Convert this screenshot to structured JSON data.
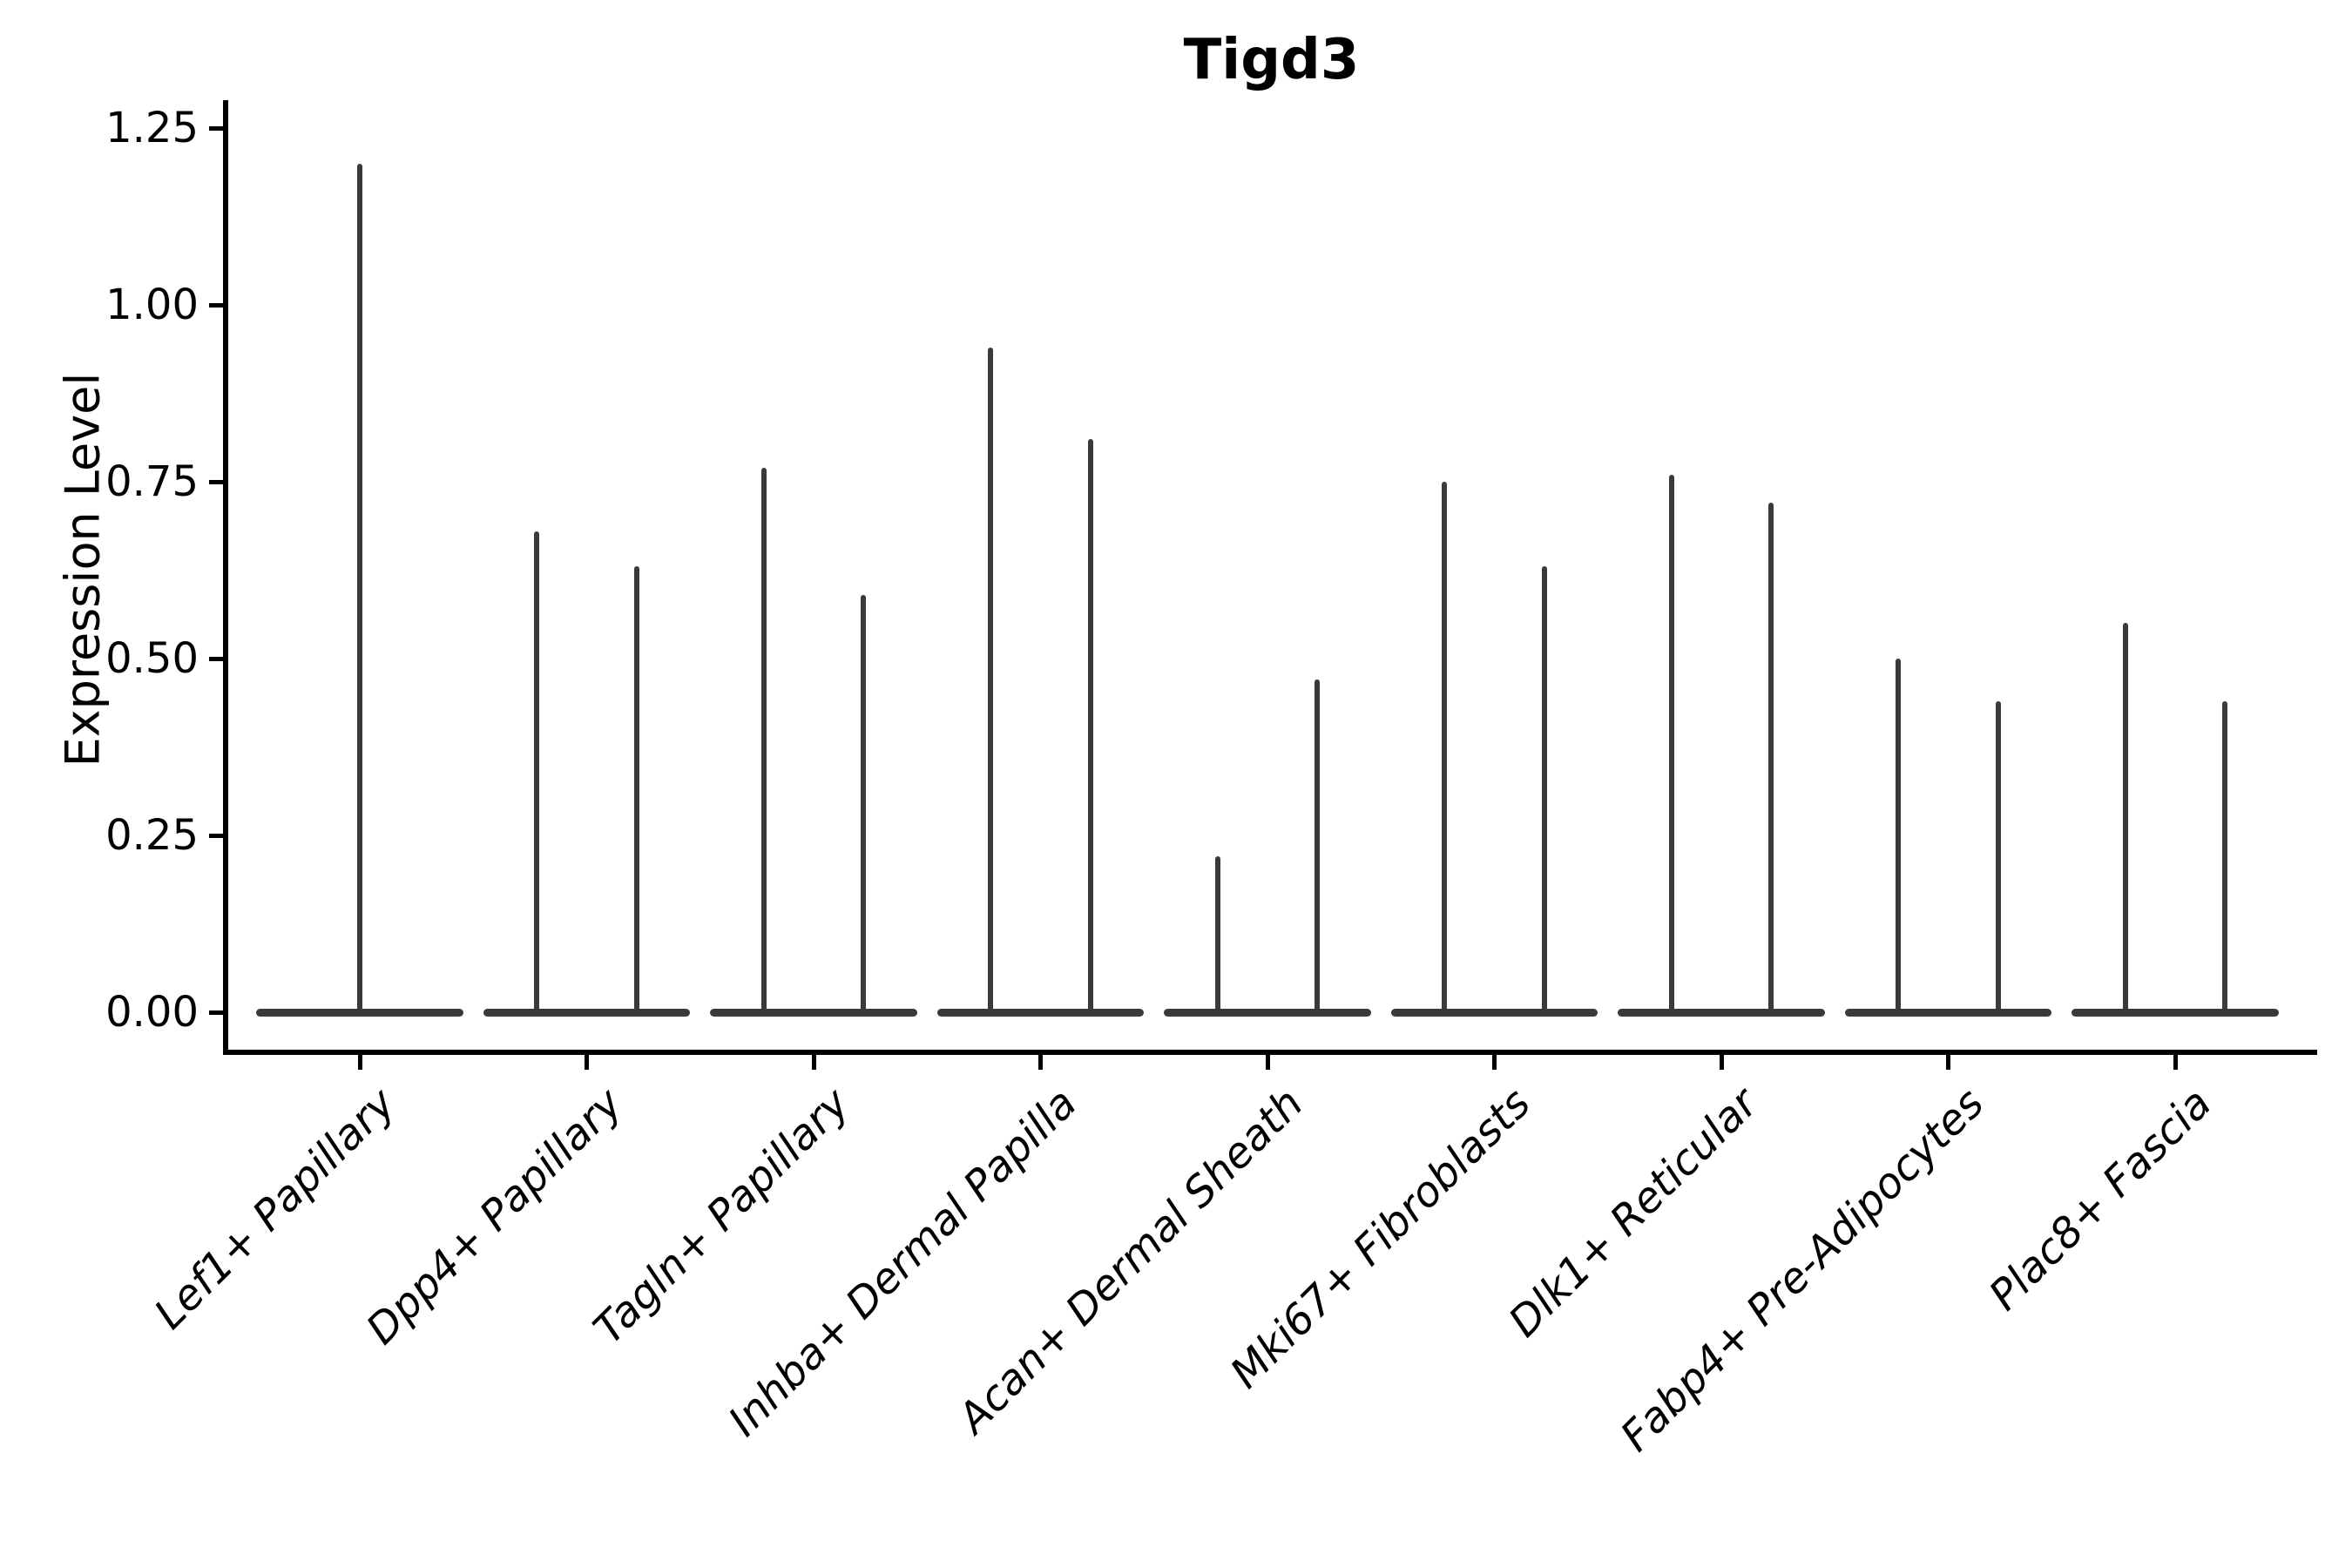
{
  "figure": {
    "title": "Tigd3",
    "ylabel": "Expression Level"
  },
  "chart_data": {
    "type": "violin",
    "title": "Tigd3",
    "xlabel": "",
    "ylabel": "Expression Level",
    "ylim": [
      0,
      1.25
    ],
    "grid": false,
    "legend": "none",
    "background": "#ffffff",
    "axis_color": "#000000",
    "violin_color": "#3a3a3a",
    "ytick_values": [
      0,
      0.25,
      0.5,
      0.75,
      1.0,
      1.25
    ],
    "ytick_labels": [
      "0.00",
      "0.25",
      "0.50",
      "0.75",
      "1.00",
      "1.25"
    ],
    "categories": [
      "Lef1+ Papillary",
      "Dpp4+ Papillary",
      "Tagln+ Papillary",
      "Inhba+ Dermal Papilla",
      "Acan+ Dermal Sheath",
      "Mki67+ Fibroblasts",
      "Dlk1+ Reticular",
      "Fabp4+ Pre-Adipocytes",
      "Plac8+ Fascia"
    ],
    "base_halfwidth_frac": 0.455,
    "violins": [
      {
        "category": "Lef1+ Papillary",
        "spikes": [
          {
            "offset": 0.0,
            "max": 1.2
          }
        ]
      },
      {
        "category": "Dpp4+ Papillary",
        "spikes": [
          {
            "offset": -0.22,
            "max": 0.68
          },
          {
            "offset": 0.22,
            "max": 0.63
          }
        ]
      },
      {
        "category": "Tagln+ Papillary",
        "spikes": [
          {
            "offset": -0.22,
            "max": 0.77
          },
          {
            "offset": 0.22,
            "max": 0.59
          }
        ]
      },
      {
        "category": "Inhba+ Dermal Papilla",
        "spikes": [
          {
            "offset": -0.22,
            "max": 0.94
          },
          {
            "offset": 0.22,
            "max": 0.81
          }
        ]
      },
      {
        "category": "Acan+ Dermal Sheath",
        "spikes": [
          {
            "offset": -0.22,
            "max": 0.22
          },
          {
            "offset": 0.22,
            "max": 0.47
          }
        ]
      },
      {
        "category": "Mki67+ Fibroblasts",
        "spikes": [
          {
            "offset": -0.22,
            "max": 0.75
          },
          {
            "offset": 0.22,
            "max": 0.63
          }
        ]
      },
      {
        "category": "Dlk1+ Reticular",
        "spikes": [
          {
            "offset": -0.22,
            "max": 0.76
          },
          {
            "offset": 0.22,
            "max": 0.72
          }
        ]
      },
      {
        "category": "Fabp4+ Pre-Adipocytes",
        "spikes": [
          {
            "offset": -0.22,
            "max": 0.5
          },
          {
            "offset": 0.22,
            "max": 0.44
          }
        ]
      },
      {
        "category": "Plac8+ Fascia",
        "spikes": [
          {
            "offset": -0.22,
            "max": 0.55
          },
          {
            "offset": 0.22,
            "max": 0.44
          }
        ]
      }
    ]
  }
}
